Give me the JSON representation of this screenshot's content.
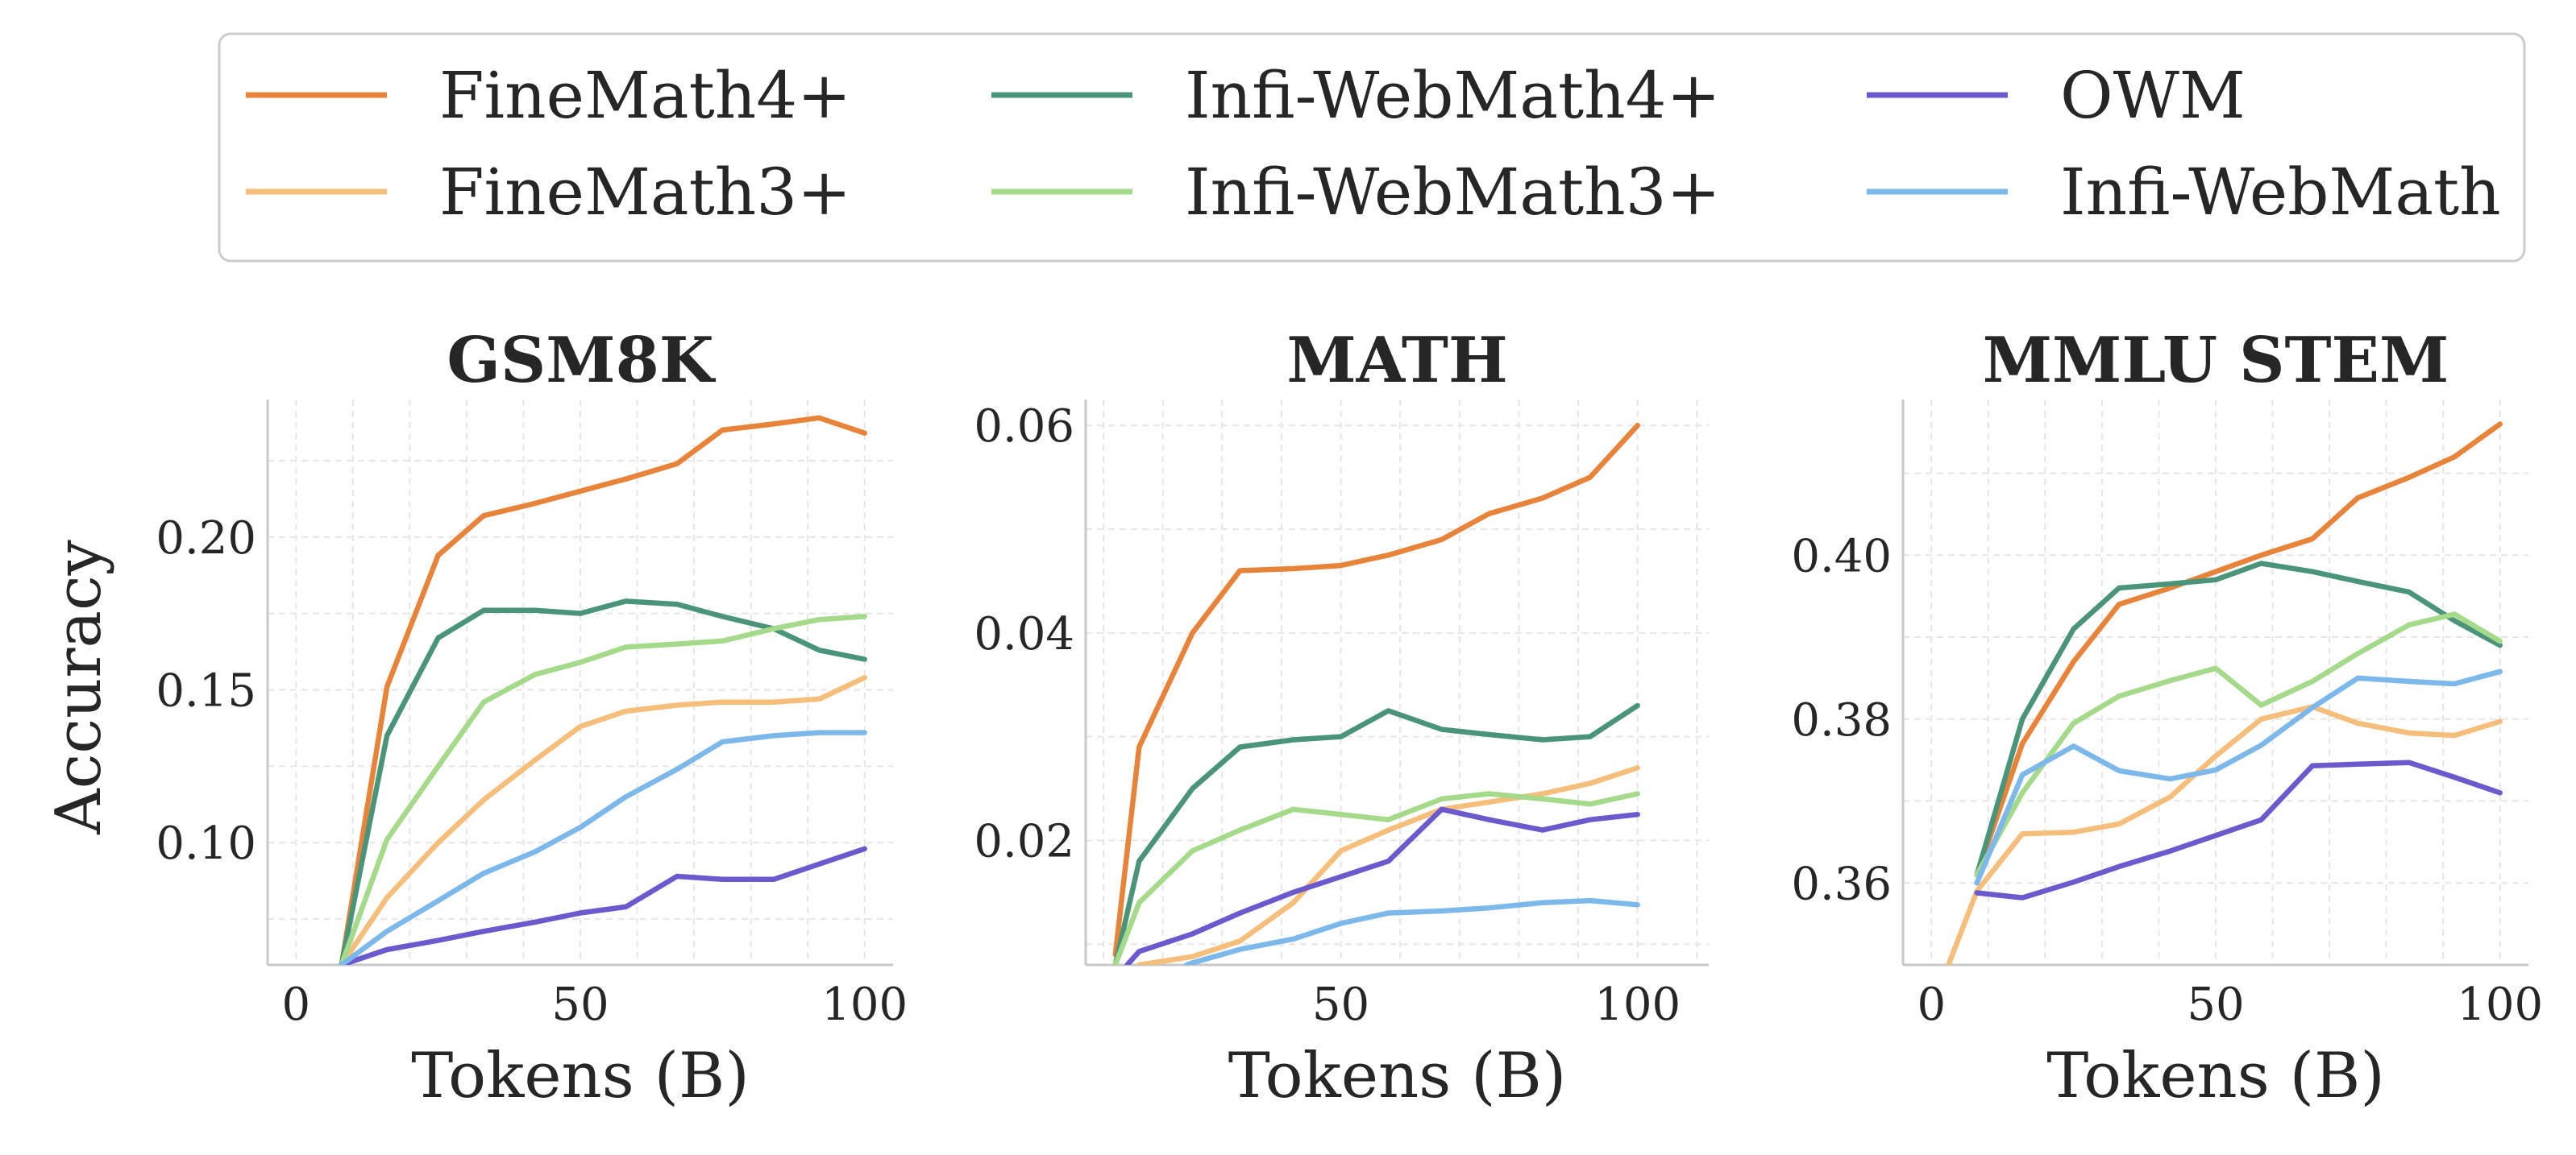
{
  "legend": {
    "placement": "top-center",
    "entries": [
      {
        "name": "FineMath4+",
        "color": "#E8833A"
      },
      {
        "name": "FineMath3+",
        "color": "#F5BE7A"
      },
      {
        "name": "Infi-WebMath4+",
        "color": "#4A957A"
      },
      {
        "name": "Infi-WebMath3+",
        "color": "#A6DA8B"
      },
      {
        "name": "OWM",
        "color": "#6A5ACD"
      },
      {
        "name": "Infi-WebMath",
        "color": "#7DB8EA"
      }
    ]
  },
  "chart_data": [
    {
      "type": "line",
      "title": "GSM8K",
      "xlabel": "Tokens (B)",
      "ylabel": "Accuracy",
      "xlim": [
        -5,
        105
      ],
      "ylim": [
        0.06,
        0.245
      ],
      "xticks": [
        {
          "v": 0,
          "label": "0"
        },
        {
          "v": 50,
          "label": "50"
        },
        {
          "v": 100,
          "label": "100"
        }
      ],
      "yticks": [
        {
          "v": 0.1,
          "label": "0.10"
        },
        {
          "v": 0.15,
          "label": "0.15"
        },
        {
          "v": 0.2,
          "label": "0.20"
        }
      ],
      "grid": true,
      "series": [
        {
          "name": "FineMath4+",
          "x": [
            8,
            16,
            25,
            33,
            42,
            50,
            58,
            67,
            75,
            84,
            92,
            100
          ],
          "y": [
            0.06,
            0.151,
            0.194,
            0.207,
            0.211,
            0.215,
            0.219,
            0.224,
            0.235,
            0.237,
            0.239,
            0.234
          ]
        },
        {
          "name": "FineMath3+",
          "x": [
            8,
            16,
            25,
            33,
            42,
            50,
            58,
            67,
            75,
            84,
            92,
            100
          ],
          "y": [
            0.06,
            0.082,
            0.1,
            0.114,
            0.127,
            0.138,
            0.143,
            0.145,
            0.146,
            0.146,
            0.147,
            0.154
          ]
        },
        {
          "name": "Infi-WebMath4+",
          "x": [
            8,
            16,
            25,
            33,
            42,
            50,
            58,
            67,
            75,
            84,
            92,
            100
          ],
          "y": [
            0.06,
            0.135,
            0.167,
            0.176,
            0.176,
            0.175,
            0.179,
            0.178,
            0.174,
            0.17,
            0.163,
            0.16
          ]
        },
        {
          "name": "Infi-WebMath3+",
          "x": [
            8,
            16,
            25,
            33,
            42,
            50,
            58,
            67,
            75,
            84,
            92,
            100
          ],
          "y": [
            0.06,
            0.101,
            0.125,
            0.146,
            0.155,
            0.159,
            0.164,
            0.165,
            0.166,
            0.17,
            0.173,
            0.174
          ]
        },
        {
          "name": "OWM",
          "x": [
            8,
            16,
            25,
            33,
            42,
            50,
            58,
            67,
            75,
            84,
            92,
            100
          ],
          "y": [
            0.06,
            0.065,
            0.068,
            0.071,
            0.074,
            0.077,
            0.079,
            0.089,
            0.088,
            0.088,
            0.093,
            0.098
          ]
        },
        {
          "name": "Infi-WebMath",
          "x": [
            8,
            16,
            25,
            33,
            42,
            50,
            58,
            67,
            75,
            84,
            92,
            100
          ],
          "y": [
            0.06,
            0.071,
            0.081,
            0.09,
            0.097,
            0.105,
            0.115,
            0.124,
            0.133,
            0.135,
            0.136,
            0.136
          ]
        }
      ]
    },
    {
      "type": "line",
      "title": "MATH",
      "xlabel": "Tokens (B)",
      "ylabel": "",
      "xlim": [
        7,
        112
      ],
      "ylim": [
        0.008,
        0.0625
      ],
      "xticks": [
        {
          "v": 50,
          "label": "50"
        },
        {
          "v": 100,
          "label": "100"
        }
      ],
      "yticks": [
        {
          "v": 0.02,
          "label": "0.02"
        },
        {
          "v": 0.04,
          "label": "0.04"
        },
        {
          "v": 0.06,
          "label": "0.06"
        }
      ],
      "grid": true,
      "series": [
        {
          "name": "FineMath4+",
          "x": [
            12,
            16,
            25,
            33,
            42,
            50,
            58,
            67,
            75,
            84,
            92,
            100
          ],
          "y": [
            0.009,
            0.029,
            0.04,
            0.046,
            0.0462,
            0.0465,
            0.0475,
            0.049,
            0.0515,
            0.053,
            0.055,
            0.06
          ]
        },
        {
          "name": "FineMath3+",
          "x": [
            16,
            25,
            33,
            42,
            50,
            58,
            67,
            75,
            84,
            92,
            100
          ],
          "y": [
            0.008,
            0.0088,
            0.0103,
            0.014,
            0.019,
            0.021,
            0.023,
            0.0237,
            0.0245,
            0.0255,
            0.027
          ]
        },
        {
          "name": "Infi-WebMath4+",
          "x": [
            12,
            16,
            25,
            33,
            42,
            50,
            58,
            67,
            75,
            84,
            92,
            100
          ],
          "y": [
            0.008,
            0.018,
            0.025,
            0.029,
            0.0297,
            0.03,
            0.0325,
            0.0307,
            0.0302,
            0.0297,
            0.03,
            0.033
          ]
        },
        {
          "name": "Infi-WebMath3+",
          "x": [
            12,
            16,
            25,
            33,
            42,
            50,
            58,
            67,
            75,
            84,
            92,
            100
          ],
          "y": [
            0.008,
            0.014,
            0.019,
            0.021,
            0.023,
            0.0225,
            0.022,
            0.024,
            0.0245,
            0.024,
            0.0235,
            0.0245
          ]
        },
        {
          "name": "OWM",
          "x": [
            14,
            16,
            25,
            33,
            42,
            50,
            58,
            67,
            75,
            84,
            92,
            100
          ],
          "y": [
            0.008,
            0.0093,
            0.011,
            0.013,
            0.015,
            0.0165,
            0.018,
            0.023,
            0.022,
            0.021,
            0.022,
            0.0225
          ]
        },
        {
          "name": "Infi-WebMath",
          "x": [
            24,
            25,
            33,
            42,
            50,
            58,
            67,
            75,
            84,
            92,
            100
          ],
          "y": [
            0.008,
            0.0082,
            0.0095,
            0.0105,
            0.012,
            0.013,
            0.0132,
            0.0135,
            0.014,
            0.0142,
            0.0138
          ]
        }
      ]
    },
    {
      "type": "line",
      "title": "MMLU STEM",
      "xlabel": "Tokens (B)",
      "ylabel": "",
      "xlim": [
        -5,
        105
      ],
      "ylim": [
        0.35,
        0.419
      ],
      "xticks": [
        {
          "v": 0,
          "label": "0"
        },
        {
          "v": 50,
          "label": "50"
        },
        {
          "v": 100,
          "label": "100"
        }
      ],
      "yticks": [
        {
          "v": 0.36,
          "label": "0.36"
        },
        {
          "v": 0.38,
          "label": "0.38"
        },
        {
          "v": 0.4,
          "label": "0.40"
        }
      ],
      "grid": true,
      "series": [
        {
          "name": "FineMath4+",
          "x": [
            8,
            16,
            25,
            33,
            42,
            50,
            58,
            67,
            75,
            84,
            92,
            100
          ],
          "y": [
            0.361,
            0.377,
            0.387,
            0.394,
            0.396,
            0.398,
            0.4,
            0.402,
            0.407,
            0.4095,
            0.412,
            0.416
          ]
        },
        {
          "name": "FineMath3+",
          "x": [
            3,
            8,
            16,
            25,
            33,
            42,
            50,
            58,
            67,
            75,
            84,
            92,
            100
          ],
          "y": [
            0.35,
            0.359,
            0.366,
            0.3662,
            0.3672,
            0.3705,
            0.3755,
            0.38,
            0.3815,
            0.3795,
            0.3783,
            0.378,
            0.3797
          ]
        },
        {
          "name": "Infi-WebMath4+",
          "x": [
            8,
            16,
            25,
            33,
            42,
            50,
            58,
            67,
            75,
            84,
            92,
            100
          ],
          "y": [
            0.361,
            0.38,
            0.391,
            0.396,
            0.3965,
            0.397,
            0.399,
            0.398,
            0.3968,
            0.3955,
            0.392,
            0.389
          ]
        },
        {
          "name": "Infi-WebMath3+",
          "x": [
            8,
            16,
            25,
            33,
            42,
            50,
            58,
            67,
            75,
            84,
            92,
            100
          ],
          "y": [
            0.361,
            0.371,
            0.3795,
            0.3828,
            0.3847,
            0.3862,
            0.3817,
            0.3846,
            0.388,
            0.3915,
            0.3928,
            0.3895
          ]
        },
        {
          "name": "OWM",
          "x": [
            8,
            16,
            25,
            33,
            42,
            50,
            58,
            67,
            75,
            84,
            92,
            100
          ],
          "y": [
            0.3588,
            0.3582,
            0.3601,
            0.362,
            0.3639,
            0.3658,
            0.3677,
            0.3743,
            0.3745,
            0.3747,
            0.3729,
            0.371
          ]
        },
        {
          "name": "Infi-WebMath",
          "x": [
            8,
            16,
            25,
            33,
            42,
            50,
            58,
            67,
            75,
            84,
            92,
            100
          ],
          "y": [
            0.36,
            0.3732,
            0.3767,
            0.3737,
            0.3727,
            0.3738,
            0.3768,
            0.3814,
            0.385,
            0.3846,
            0.3843,
            0.3858
          ]
        }
      ]
    }
  ]
}
